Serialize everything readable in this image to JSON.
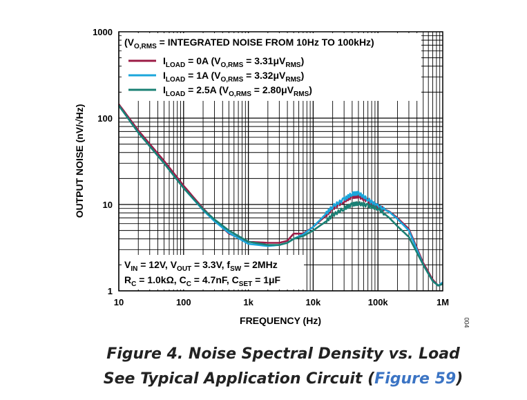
{
  "chart_data": {
    "type": "line",
    "xlabel": "FREQUENCY (Hz)",
    "ylabel": "OUTPUT NOISE (nV/√Hz)",
    "x_scale": "log",
    "y_scale": "log",
    "xlim": [
      10,
      1000000
    ],
    "ylim": [
      1,
      1000
    ],
    "grid": true,
    "x_ticks": [
      {
        "v": 10,
        "label": "10"
      },
      {
        "v": 100,
        "label": "100"
      },
      {
        "v": 1000,
        "label": "1k"
      },
      {
        "v": 10000,
        "label": "10k"
      },
      {
        "v": 100000,
        "label": "100k"
      },
      {
        "v": 1000000,
        "label": "1M"
      }
    ],
    "y_ticks": [
      {
        "v": 1,
        "label": "1"
      },
      {
        "v": 10,
        "label": "10"
      },
      {
        "v": 100,
        "label": "100"
      },
      {
        "v": 1000,
        "label": "1000"
      }
    ],
    "legend_title": {
      "prefix": "(V",
      "sub": "O,RMS",
      "rest": " = INTEGRATED NOISE FROM 10Hz TO 100kHz)"
    },
    "legend_placement": "top-left",
    "series": [
      {
        "name": "ILOAD = 0A (VO,RMS = 3.31μVRMS)",
        "label_parts": {
          "load": "0A",
          "vrms": "3.31μV"
        },
        "color": "#9b1b46",
        "x": [
          10,
          20,
          50,
          100,
          200,
          300,
          500,
          1000,
          2000,
          3000,
          4000,
          5000,
          7000,
          10000,
          15000,
          20000,
          30000,
          40000,
          50000,
          70000,
          100000,
          150000,
          200000,
          300000,
          500000,
          700000,
          850000,
          1000000
        ],
        "y": [
          145,
          72,
          32,
          16.5,
          9,
          6.6,
          4.6,
          3.7,
          3.6,
          3.6,
          3.8,
          4.6,
          4.6,
          5.5,
          7.2,
          9,
          11,
          12.3,
          12.5,
          11,
          9.5,
          8.3,
          7,
          5.2,
          2.1,
          1.35,
          1.15,
          1.25
        ]
      },
      {
        "name": "ILOAD = 1A (VO,RMS = 3.32μVRMS)",
        "label_parts": {
          "load": "1A",
          "vrms": "3.32μV"
        },
        "color": "#1ba6db",
        "x": [
          10,
          20,
          50,
          100,
          200,
          300,
          500,
          1000,
          2000,
          3000,
          4000,
          5000,
          7000,
          10000,
          15000,
          20000,
          30000,
          40000,
          50000,
          70000,
          100000,
          150000,
          200000,
          300000,
          500000,
          700000,
          850000,
          1000000
        ],
        "y": [
          140,
          68,
          30,
          15.5,
          8.6,
          6.4,
          4.7,
          3.5,
          3.3,
          3.4,
          3.6,
          4,
          4.5,
          5.5,
          7.5,
          9.5,
          11.5,
          13.3,
          13.5,
          11.5,
          9.5,
          8.2,
          6.8,
          5,
          2,
          1.3,
          1.15,
          1.25
        ]
      },
      {
        "name": "ILOAD = 2.5A (VO,RMS = 2.80μVRMS)",
        "label_parts": {
          "load": "2.5A",
          "vrms": "2.80μV"
        },
        "color": "#1a8074",
        "x": [
          10,
          20,
          50,
          100,
          200,
          300,
          500,
          1000,
          2000,
          3000,
          4000,
          5000,
          7000,
          10000,
          15000,
          20000,
          30000,
          40000,
          50000,
          70000,
          100000,
          150000,
          200000,
          300000,
          500000,
          700000,
          850000,
          1000000
        ],
        "y": [
          140,
          68,
          30,
          15.5,
          8.8,
          6.7,
          5,
          3.7,
          3.4,
          3.4,
          3.6,
          4,
          4.3,
          5,
          6.2,
          7.5,
          9,
          10,
          10.3,
          9.7,
          9,
          7,
          5.6,
          4.2,
          2,
          1.3,
          1.15,
          1.2
        ]
      }
    ],
    "annotation": {
      "line1": "VIN = 12V, VOUT = 3.3V, fSW = 2MHz",
      "line2": "RC = 1.0kΩ, CC = 4.7nF, CSET = 1μF"
    }
  },
  "figure_id": "004",
  "caption": {
    "line1": "Figure 4. Noise Spectral Density vs. Load",
    "line2_prefix": "See Typical Application Circuit (",
    "link": "Figure 59",
    "line2_suffix": ")"
  }
}
